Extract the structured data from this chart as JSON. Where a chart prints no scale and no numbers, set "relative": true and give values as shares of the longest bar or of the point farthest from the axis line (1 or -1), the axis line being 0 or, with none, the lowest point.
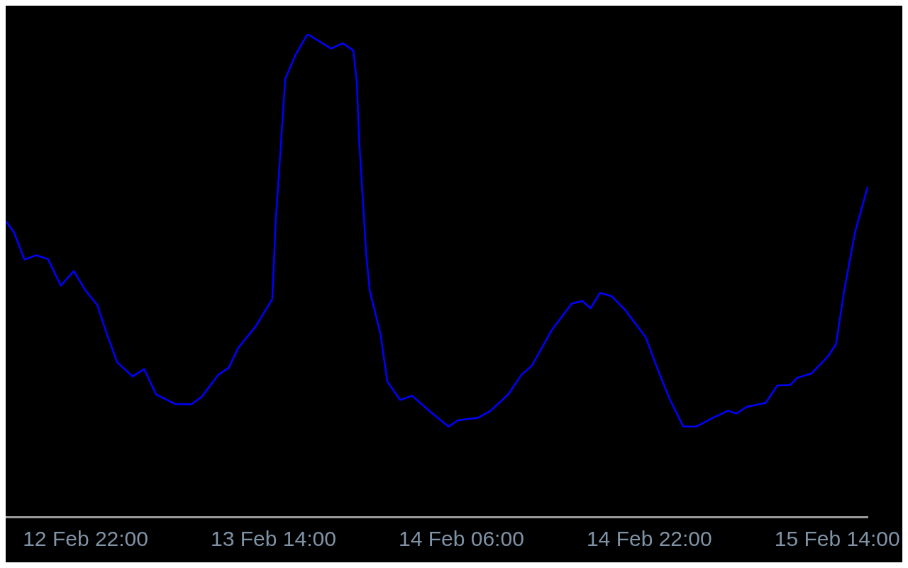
{
  "chart_data": {
    "type": "line",
    "relative": true,
    "grid": false,
    "legend": false,
    "marker": "none",
    "line_style": "solid",
    "xlim": [
      "--02-12T15:12",
      "--02-15T16:36"
    ],
    "xticks": [
      {
        "value": "--02-12T22:00",
        "label": "12 Feb 22:00"
      },
      {
        "value": "--02-13T14:00",
        "label": "13 Feb 14:00"
      },
      {
        "value": "--02-14T06:00",
        "label": "14 Feb 06:00"
      },
      {
        "value": "--02-14T22:00",
        "label": "14 Feb 22:00"
      },
      {
        "value": "--02-15T14:00",
        "label": "15 Feb 14:00"
      }
    ],
    "x": [
      "--02-12T15:12",
      "--02-12T15:54",
      "--02-12T16:48",
      "--02-12T17:48",
      "--02-12T18:48",
      "--02-12T19:54",
      "--02-12T21:00",
      "--02-12T22:00",
      "--02-12T23:00",
      "--02-12T23:48",
      "--02-13T00:42",
      "--02-13T02:00",
      "--02-13T03:00",
      "--02-13T04:00",
      "--02-13T05:36",
      "--02-13T07:00",
      "--02-13T07:54",
      "--02-13T09:18",
      "--02-13T10:12",
      "--02-13T11:00",
      "--02-13T12:30",
      "--02-13T13:54",
      "--02-13T14:12",
      "--02-13T14:30",
      "--02-13T15:00",
      "--02-13T15:54",
      "--02-13T16:54",
      "--02-13T17:54",
      "--02-13T18:54",
      "--02-13T19:54",
      "--02-13T20:48",
      "--02-13T21:06",
      "--02-13T21:18",
      "--02-13T21:36",
      "--02-13T21:54",
      "--02-13T22:12",
      "--02-13T23:06",
      "--02-13T23:42",
      "--02-14T00:48",
      "--02-14T01:48",
      "--02-14T03:24",
      "--02-14T04:54",
      "--02-14T05:42",
      "--02-14T07:24",
      "--02-14T08:30",
      "--02-14T10:00",
      "--02-14T11:06",
      "--02-14T12:00",
      "--02-14T13:42",
      "--02-14T15:24",
      "--02-14T16:18",
      "--02-14T17:00",
      "--02-14T17:48",
      "--02-14T18:48",
      "--02-14T20:00",
      "--02-14T21:42",
      "--02-14T22:36",
      "--02-14T23:42",
      "--02-15T00:54",
      "--02-15T02:00",
      "--02-15T03:24",
      "--02-15T04:42",
      "--02-15T05:24",
      "--02-15T06:18",
      "--02-15T07:54",
      "--02-15T08:54",
      "--02-15T10:00",
      "--02-15T10:36",
      "--02-15T11:48",
      "--02-15T13:12",
      "--02-15T13:54",
      "--02-15T14:36",
      "--02-15T15:30",
      "--02-15T16:36"
    ],
    "series": [
      {
        "color": "#0000ff",
        "values": [
          0.613,
          0.59,
          0.533,
          0.542,
          0.534,
          0.479,
          0.509,
          0.469,
          0.439,
          0.38,
          0.32,
          0.291,
          0.306,
          0.254,
          0.234,
          0.233,
          0.249,
          0.294,
          0.309,
          0.35,
          0.395,
          0.451,
          0.617,
          0.721,
          0.907,
          0.958,
          1.0,
          0.985,
          0.97,
          0.981,
          0.966,
          0.899,
          0.78,
          0.662,
          0.543,
          0.469,
          0.38,
          0.28,
          0.242,
          0.251,
          0.217,
          0.187,
          0.2,
          0.205,
          0.22,
          0.254,
          0.294,
          0.313,
          0.387,
          0.442,
          0.447,
          0.432,
          0.464,
          0.457,
          0.427,
          0.372,
          0.313,
          0.246,
          0.187,
          0.187,
          0.205,
          0.22,
          0.214,
          0.228,
          0.236,
          0.272,
          0.273,
          0.288,
          0.297,
          0.332,
          0.358,
          0.469,
          0.588,
          0.684
        ]
      }
    ]
  }
}
